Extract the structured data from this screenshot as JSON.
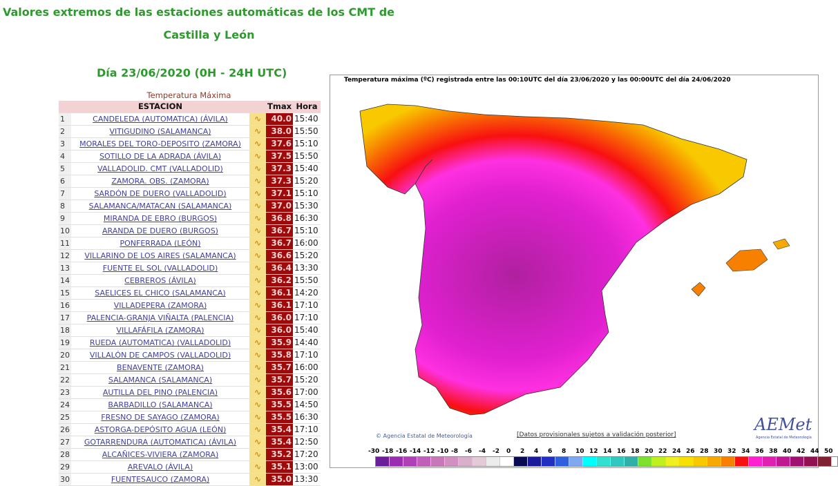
{
  "header": {
    "title_line1": "Valores extremos de las estaciones automáticas de los CMT de",
    "title_line2": "Castilla y León",
    "date": "Día 23/06/2020 (0H - 24H UTC)"
  },
  "table": {
    "caption": "Temperatura Máxima",
    "columns": [
      "ESTACION",
      "Tmax",
      "Hora"
    ],
    "icon": "chart-wave-icon",
    "rows": [
      {
        "n": "1",
        "station": "CANDELEDA (AUTOMATICA) (ÁVILA)",
        "tmax": "40.0",
        "hora": "15:40"
      },
      {
        "n": "2",
        "station": "VITIGUDINO (SALAMANCA)",
        "tmax": "38.0",
        "hora": "15:50"
      },
      {
        "n": "3",
        "station": "MORALES DEL TORO-DEPOSITO (ZAMORA)",
        "tmax": "37.6",
        "hora": "15:10"
      },
      {
        "n": "4",
        "station": "SOTILLO DE LA ADRADA (ÁVILA)",
        "tmax": "37.5",
        "hora": "15:50"
      },
      {
        "n": "5",
        "station": "VALLADOLID. CMT (VALLADOLID)",
        "tmax": "37.3",
        "hora": "15:40"
      },
      {
        "n": "6",
        "station": "ZAMORA. OBS. (ZAMORA)",
        "tmax": "37.3",
        "hora": "15:20"
      },
      {
        "n": "7",
        "station": "SARDÓN DE DUERO (VALLADOLID)",
        "tmax": "37.1",
        "hora": "15:10"
      },
      {
        "n": "8",
        "station": "SALAMANCA/MATACAN (SALAMANCA)",
        "tmax": "37.0",
        "hora": "15:30"
      },
      {
        "n": "9",
        "station": "MIRANDA DE EBRO (BURGOS)",
        "tmax": "36.8",
        "hora": "16:30"
      },
      {
        "n": "10",
        "station": "ARANDA DE DUERO (BURGOS)",
        "tmax": "36.7",
        "hora": "15:10"
      },
      {
        "n": "11",
        "station": "PONFERRADA (LEÓN)",
        "tmax": "36.7",
        "hora": "16:00"
      },
      {
        "n": "12",
        "station": "VILLARINO DE LOS AIRES (SALAMANCA)",
        "tmax": "36.6",
        "hora": "15:20"
      },
      {
        "n": "13",
        "station": "FUENTE EL SOL (VALLADOLID)",
        "tmax": "36.4",
        "hora": "13:30"
      },
      {
        "n": "14",
        "station": "CEBREROS (ÁVILA)",
        "tmax": "36.2",
        "hora": "15:50"
      },
      {
        "n": "15",
        "station": "SAELICES EL CHICO (SALAMANCA)",
        "tmax": "36.1",
        "hora": "14:20"
      },
      {
        "n": "16",
        "station": "VILLADEPERA (ZAMORA)",
        "tmax": "36.1",
        "hora": "17:10"
      },
      {
        "n": "17",
        "station": "PALENCIA-GRANJA VIÑALTA (PALENCIA)",
        "tmax": "36.0",
        "hora": "17:10"
      },
      {
        "n": "18",
        "station": "VILLAFÁFILA (ZAMORA)",
        "tmax": "36.0",
        "hora": "15:40"
      },
      {
        "n": "19",
        "station": "RUEDA (AUTOMATICA) (VALLADOLID)",
        "tmax": "35.9",
        "hora": "14:40"
      },
      {
        "n": "20",
        "station": "VILLALÓN DE CAMPOS (VALLADOLID)",
        "tmax": "35.8",
        "hora": "17:10"
      },
      {
        "n": "21",
        "station": "BENAVENTE (ZAMORA)",
        "tmax": "35.7",
        "hora": "16:00"
      },
      {
        "n": "22",
        "station": "SALAMANCA (SALAMANCA)",
        "tmax": "35.7",
        "hora": "15:20"
      },
      {
        "n": "23",
        "station": "AUTILLA DEL PINO (PALENCIA)",
        "tmax": "35.6",
        "hora": "17:00"
      },
      {
        "n": "24",
        "station": "BARBADILLO (SALAMANCA)",
        "tmax": "35.5",
        "hora": "14:50"
      },
      {
        "n": "25",
        "station": "FRESNO DE SAYAGO (ZAMORA)",
        "tmax": "35.5",
        "hora": "16:30"
      },
      {
        "n": "26",
        "station": "ASTORGA-DEPÓSITO AGUA (LEÓN)",
        "tmax": "35.4",
        "hora": "17:10"
      },
      {
        "n": "27",
        "station": "GOTARRENDURA (AUTOMATICA) (ÁVILA)",
        "tmax": "35.4",
        "hora": "12:50"
      },
      {
        "n": "28",
        "station": "ALCAÑICES-VIVIERA (ZAMORA)",
        "tmax": "35.2",
        "hora": "17:20"
      },
      {
        "n": "29",
        "station": "AREVALO (ÁVILA)",
        "tmax": "35.1",
        "hora": "13:00"
      },
      {
        "n": "30",
        "station": "FUENTESAUCO (ZAMORA)",
        "tmax": "35.0",
        "hora": "13:30"
      }
    ]
  },
  "map": {
    "title": "Temperatura máxima (ºC) registrada entre las 00:10UTC del día 23/06/2020 y las 00:00UTC del día 24/06/2020",
    "agency": "© Agencia Estatal de Meteorología",
    "disclaimer": "[Datos provisionales sujetos a validación posterior]",
    "logo_text": "AEMet",
    "logo_sub": "Agencia Estatal de Meteorología",
    "legend_labels": [
      "-30",
      "-18",
      "-16",
      "-14",
      "-12",
      "-10",
      "-8",
      "-6",
      "-4",
      "-2",
      "0",
      "2",
      "4",
      "6",
      "8",
      "10",
      "12",
      "14",
      "16",
      "18",
      "20",
      "22",
      "24",
      "26",
      "28",
      "30",
      "32",
      "34",
      "36",
      "38",
      "40",
      "42",
      "44",
      "50"
    ],
    "legend_colors": [
      "#6a1e9a",
      "#9a2eb0",
      "#b040b8",
      "#c060b8",
      "#c878b8",
      "#d090c0",
      "#d8b0cc",
      "#e4cad6",
      "#ececec",
      "#ffffff",
      "#0a0a50",
      "#1a1a9a",
      "#2030c0",
      "#3060e0",
      "#80a8f0",
      "#00ffff",
      "#30e0d0",
      "#30c8c0",
      "#30b0a8",
      "#80e030",
      "#c0f020",
      "#f0f020",
      "#f8e000",
      "#f8c800",
      "#f8a800",
      "#f88000",
      "#f81010",
      "#ff20d0",
      "#e020b0",
      "#c01890",
      "#a01070",
      "#901050",
      "#802030"
    ]
  }
}
